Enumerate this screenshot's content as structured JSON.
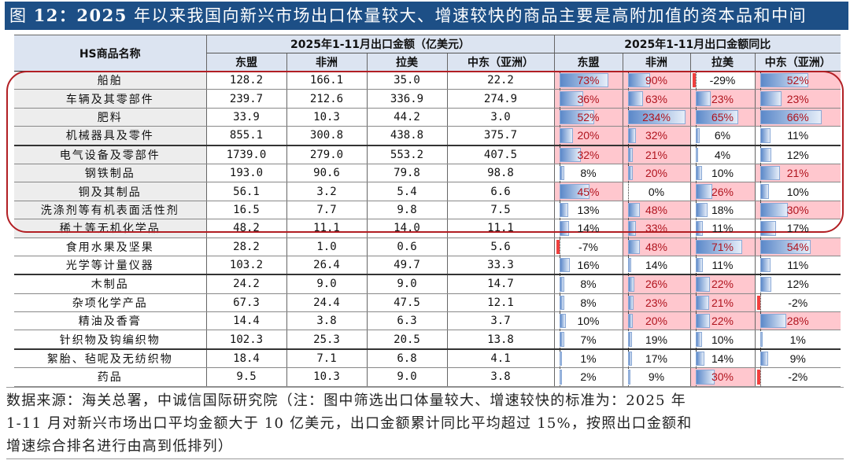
{
  "title": {
    "prefix": "图 ",
    "number": "12：2025",
    "text": " 年以来我国向新兴市场出口体量较大、增速较快的商品主要是高附加值的资本品和中间"
  },
  "table": {
    "header": {
      "name_col": "HS商品名称",
      "group_amount": "2025年1-11月出口金额（亿美元）",
      "group_yoy": "2025年1-11月出口金额同比",
      "regions": [
        "东盟",
        "非洲",
        "拉美",
        "中东（亚洲）"
      ]
    },
    "rows": [
      {
        "name": "船舶",
        "amount": [
          "128.2",
          "166.1",
          "35.0",
          "22.2"
        ],
        "yoy": [
          "73%",
          "90%",
          "-29%",
          "52%"
        ]
      },
      {
        "name": "车辆及其零部件",
        "amount": [
          "239.7",
          "212.6",
          "336.9",
          "274.9"
        ],
        "yoy": [
          "36%",
          "63%",
          "23%",
          "23%"
        ]
      },
      {
        "name": "肥料",
        "amount": [
          "33.9",
          "10.3",
          "44.2",
          "3.0"
        ],
        "yoy": [
          "52%",
          "234%",
          "65%",
          "66%"
        ]
      },
      {
        "name": "机械器具及零件",
        "amount": [
          "855.1",
          "300.8",
          "438.8",
          "375.7"
        ],
        "yoy": [
          "20%",
          "32%",
          "6%",
          "11%"
        ]
      },
      {
        "name": "电气设备及零部件",
        "amount": [
          "1739.0",
          "279.0",
          "553.2",
          "407.5"
        ],
        "yoy": [
          "32%",
          "21%",
          "4%",
          "12%"
        ]
      },
      {
        "name": "钢铁制品",
        "amount": [
          "193.0",
          "90.6",
          "79.8",
          "98.8"
        ],
        "yoy": [
          "8%",
          "20%",
          "10%",
          "21%"
        ]
      },
      {
        "name": "铜及其制品",
        "amount": [
          "56.1",
          "3.2",
          "5.4",
          "6.6"
        ],
        "yoy": [
          "45%",
          "0%",
          "26%",
          "10%"
        ]
      },
      {
        "name": "洗涤剂等有机表面活性剂",
        "amount": [
          "16.5",
          "7.7",
          "9.8",
          "7.5"
        ],
        "yoy": [
          "13%",
          "48%",
          "18%",
          "30%"
        ]
      },
      {
        "name": "稀土等无机化学品",
        "amount": [
          "48.2",
          "11.1",
          "14.0",
          "11.1"
        ],
        "yoy": [
          "14%",
          "33%",
          "11%",
          "17%"
        ]
      },
      {
        "name": "食用水果及坚果",
        "amount": [
          "28.2",
          "1.0",
          "0.6",
          "5.6"
        ],
        "yoy": [
          "-7%",
          "48%",
          "71%",
          "54%"
        ]
      },
      {
        "name": "光学等计量仪器",
        "amount": [
          "103.2",
          "26.4",
          "49.7",
          "33.3"
        ],
        "yoy": [
          "16%",
          "14%",
          "11%",
          "11%"
        ]
      },
      {
        "name": "木制品",
        "amount": [
          "24.2",
          "9.0",
          "9.0",
          "14.7"
        ],
        "yoy": [
          "8%",
          "26%",
          "22%",
          "12%"
        ]
      },
      {
        "name": "杂项化学产品",
        "amount": [
          "67.3",
          "24.4",
          "47.5",
          "12.1"
        ],
        "yoy": [
          "8%",
          "23%",
          "21%",
          "-2%"
        ]
      },
      {
        "name": "精油及香膏",
        "amount": [
          "14.4",
          "3.8",
          "6.3",
          "3.7"
        ],
        "yoy": [
          "10%",
          "20%",
          "22%",
          "28%"
        ]
      },
      {
        "name": "针织物及钩编织物",
        "amount": [
          "102.3",
          "25.3",
          "20.5",
          "13.8"
        ],
        "yoy": [
          "7%",
          "19%",
          "10%",
          "1%"
        ]
      },
      {
        "name": "絮胎、毡呢及无纺织物",
        "amount": [
          "18.4",
          "7.1",
          "6.8",
          "4.1"
        ],
        "yoy": [
          "1%",
          "17%",
          "14%",
          "9%"
        ]
      },
      {
        "name": "药品",
        "amount": [
          "9.5",
          "10.3",
          "9.0",
          "3.8"
        ],
        "yoy": [
          "2%",
          "9%",
          "30%",
          "-2%"
        ]
      }
    ],
    "highlighted_rows": 9,
    "colors": {
      "title_bg": "#1D4F86",
      "header_bg": "#DCE4F1",
      "positive_fill": "#FFC7CE",
      "positive_text": "#B0141E",
      "bar_blue": "#5B88C9",
      "negative_bar": "#F0403E",
      "highlight_box": "#B21F24"
    }
  },
  "footnote": {
    "line1": "数据来源：海关总署，中诚信国际研究院（注：图中筛选出口体量较大、增速较快的标准为：2025 年",
    "line2": "1-11 月对新兴市场出口平均金额大于 10 亿美元，出口金额累计同比平均超过 15%，按照出口金额和",
    "line3": "增速综合排名进行由高到低排列）"
  }
}
